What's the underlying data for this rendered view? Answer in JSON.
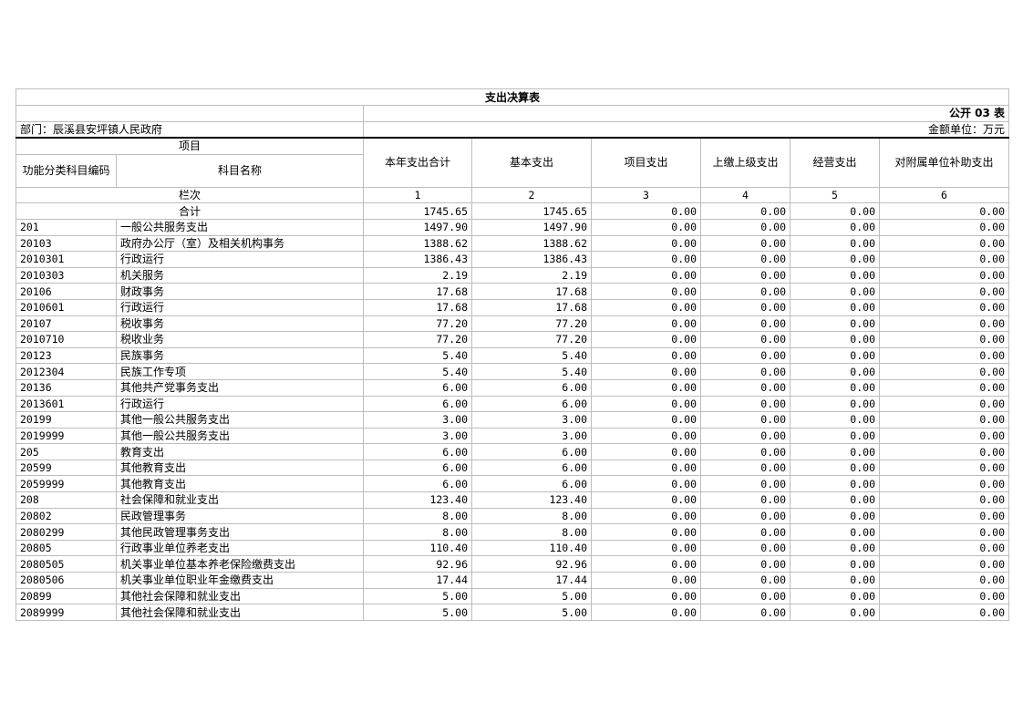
{
  "title": "支出决算表",
  "table_code": "公开 03 表",
  "department": "部门：辰溪县安坪镇人民政府",
  "unit": "金额单位：万元",
  "headers": {
    "item": "项目",
    "code": "功能分类科目编码",
    "name": "科目名称",
    "total": "本年支出合计",
    "basic": "基本支出",
    "project": "项目支出",
    "upper": "上缴上级支出",
    "business": "经营支出",
    "subsidy": "对附属单位补助支出"
  },
  "column_index_label": "栏次",
  "column_numbers": [
    "1",
    "2",
    "3",
    "4",
    "5",
    "6"
  ],
  "total_row": {
    "label": "合计",
    "values": [
      "1745.65",
      "1745.65",
      "0.00",
      "0.00",
      "0.00",
      "0.00"
    ]
  },
  "rows": [
    {
      "code": "201",
      "name": "一般公共服务支出",
      "values": [
        "1497.90",
        "1497.90",
        "0.00",
        "0.00",
        "0.00",
        "0.00"
      ]
    },
    {
      "code": "20103",
      "name": "政府办公厅（室）及相关机构事务",
      "values": [
        "1388.62",
        "1388.62",
        "0.00",
        "0.00",
        "0.00",
        "0.00"
      ]
    },
    {
      "code": "2010301",
      "name": "行政运行",
      "values": [
        "1386.43",
        "1386.43",
        "0.00",
        "0.00",
        "0.00",
        "0.00"
      ]
    },
    {
      "code": "2010303",
      "name": "机关服务",
      "values": [
        "2.19",
        "2.19",
        "0.00",
        "0.00",
        "0.00",
        "0.00"
      ]
    },
    {
      "code": "20106",
      "name": "财政事务",
      "values": [
        "17.68",
        "17.68",
        "0.00",
        "0.00",
        "0.00",
        "0.00"
      ]
    },
    {
      "code": "2010601",
      "name": "行政运行",
      "values": [
        "17.68",
        "17.68",
        "0.00",
        "0.00",
        "0.00",
        "0.00"
      ]
    },
    {
      "code": "20107",
      "name": "税收事务",
      "values": [
        "77.20",
        "77.20",
        "0.00",
        "0.00",
        "0.00",
        "0.00"
      ]
    },
    {
      "code": "2010710",
      "name": "税收业务",
      "values": [
        "77.20",
        "77.20",
        "0.00",
        "0.00",
        "0.00",
        "0.00"
      ]
    },
    {
      "code": "20123",
      "name": "民族事务",
      "values": [
        "5.40",
        "5.40",
        "0.00",
        "0.00",
        "0.00",
        "0.00"
      ]
    },
    {
      "code": "2012304",
      "name": "民族工作专项",
      "values": [
        "5.40",
        "5.40",
        "0.00",
        "0.00",
        "0.00",
        "0.00"
      ]
    },
    {
      "code": "20136",
      "name": "其他共产党事务支出",
      "values": [
        "6.00",
        "6.00",
        "0.00",
        "0.00",
        "0.00",
        "0.00"
      ]
    },
    {
      "code": "2013601",
      "name": "行政运行",
      "values": [
        "6.00",
        "6.00",
        "0.00",
        "0.00",
        "0.00",
        "0.00"
      ]
    },
    {
      "code": "20199",
      "name": "其他一般公共服务支出",
      "values": [
        "3.00",
        "3.00",
        "0.00",
        "0.00",
        "0.00",
        "0.00"
      ]
    },
    {
      "code": "2019999",
      "name": "其他一般公共服务支出",
      "values": [
        "3.00",
        "3.00",
        "0.00",
        "0.00",
        "0.00",
        "0.00"
      ]
    },
    {
      "code": "205",
      "name": "教育支出",
      "values": [
        "6.00",
        "6.00",
        "0.00",
        "0.00",
        "0.00",
        "0.00"
      ]
    },
    {
      "code": "20599",
      "name": "其他教育支出",
      "values": [
        "6.00",
        "6.00",
        "0.00",
        "0.00",
        "0.00",
        "0.00"
      ]
    },
    {
      "code": "2059999",
      "name": "其他教育支出",
      "values": [
        "6.00",
        "6.00",
        "0.00",
        "0.00",
        "0.00",
        "0.00"
      ]
    },
    {
      "code": "208",
      "name": "社会保障和就业支出",
      "values": [
        "123.40",
        "123.40",
        "0.00",
        "0.00",
        "0.00",
        "0.00"
      ]
    },
    {
      "code": "20802",
      "name": "民政管理事务",
      "values": [
        "8.00",
        "8.00",
        "0.00",
        "0.00",
        "0.00",
        "0.00"
      ]
    },
    {
      "code": "2080299",
      "name": "其他民政管理事务支出",
      "values": [
        "8.00",
        "8.00",
        "0.00",
        "0.00",
        "0.00",
        "0.00"
      ]
    },
    {
      "code": "20805",
      "name": "行政事业单位养老支出",
      "values": [
        "110.40",
        "110.40",
        "0.00",
        "0.00",
        "0.00",
        "0.00"
      ]
    },
    {
      "code": "2080505",
      "name": "机关事业单位基本养老保险缴费支出",
      "values": [
        "92.96",
        "92.96",
        "0.00",
        "0.00",
        "0.00",
        "0.00"
      ]
    },
    {
      "code": "2080506",
      "name": "机关事业单位职业年金缴费支出",
      "values": [
        "17.44",
        "17.44",
        "0.00",
        "0.00",
        "0.00",
        "0.00"
      ]
    },
    {
      "code": "20899",
      "name": "其他社会保障和就业支出",
      "values": [
        "5.00",
        "5.00",
        "0.00",
        "0.00",
        "0.00",
        "0.00"
      ]
    },
    {
      "code": "2089999",
      "name": "其他社会保障和就业支出",
      "values": [
        "5.00",
        "5.00",
        "0.00",
        "0.00",
        "0.00",
        "0.00"
      ]
    }
  ]
}
